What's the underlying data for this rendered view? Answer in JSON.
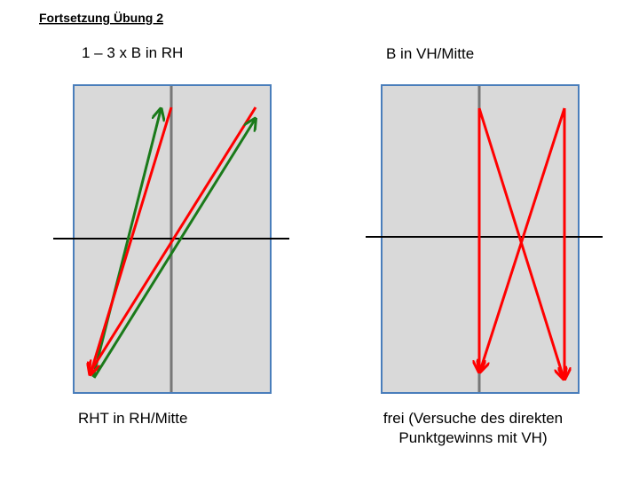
{
  "header": {
    "title": "Fortsetzung Übung 2"
  },
  "panels": [
    {
      "title": "1 – 3 x B in RH",
      "caption": [
        "RHT in RH/Mitte"
      ]
    },
    {
      "title": "B in VH/Mitte",
      "caption": [
        "frei (Versuche des direkten",
        "Punktgewinns mit VH)"
      ]
    }
  ]
}
